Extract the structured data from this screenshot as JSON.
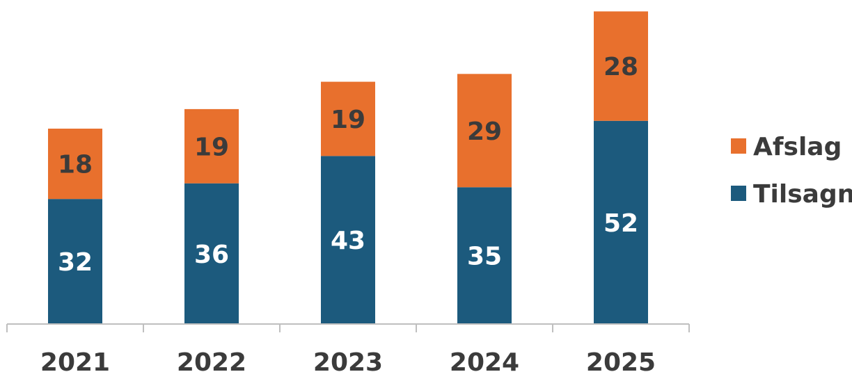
{
  "chart_data": {
    "type": "bar",
    "stacked": true,
    "categories": [
      "2021",
      "2022",
      "2023",
      "2024",
      "2025"
    ],
    "series": [
      {
        "name": "Tilsagn",
        "values": [
          32,
          36,
          43,
          35,
          52
        ],
        "color": "#1c5a7d",
        "label_color": "#ffffff"
      },
      {
        "name": "Afslag",
        "values": [
          18,
          19,
          19,
          29,
          28
        ],
        "color": "#e8702d",
        "label_color": "#3b3b3b"
      }
    ],
    "legend": {
      "position": "right",
      "order": [
        "Afslag",
        "Tilsagn"
      ]
    },
    "grid": false,
    "axis_color": "#bfbfbf"
  }
}
